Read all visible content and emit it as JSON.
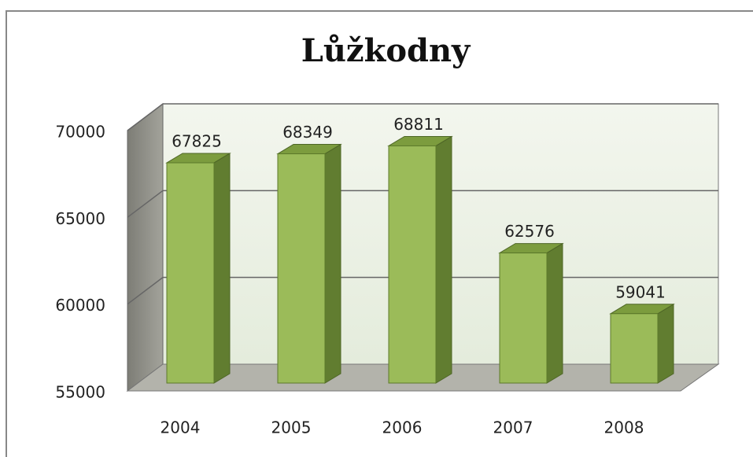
{
  "chart_data": {
    "type": "bar3d",
    "title": "Lůžkodny",
    "categories": [
      "2004",
      "2005",
      "2006",
      "2007",
      "2008"
    ],
    "values": [
      67825,
      68349,
      68811,
      62576,
      59041
    ],
    "color": "#9bbb59",
    "ylim": [
      55000,
      70000
    ],
    "yticks": [
      55000,
      60000,
      65000,
      70000
    ],
    "grid": true
  }
}
